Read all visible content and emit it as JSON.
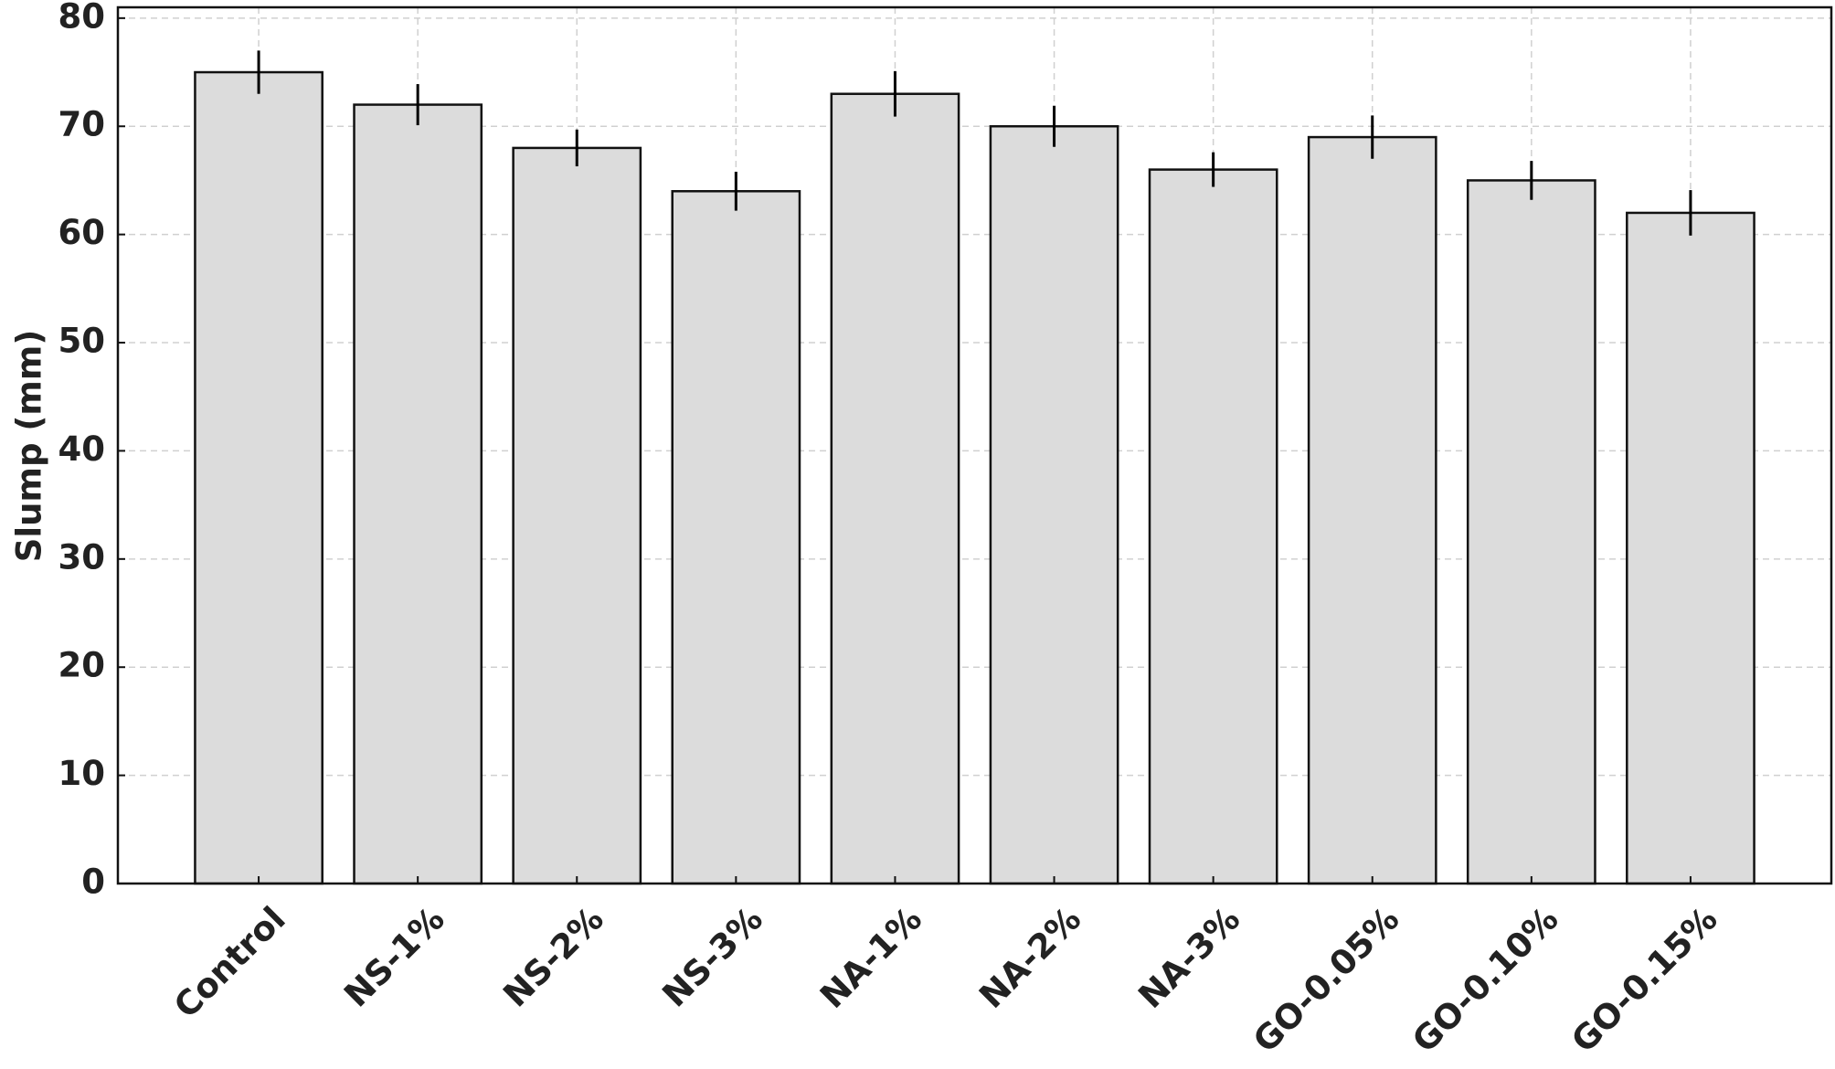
{
  "chart_data": {
    "type": "bar",
    "y_label": "Slump (mm)",
    "categories": [
      "Control",
      "NS-1%",
      "NS-2%",
      "NS-3%",
      "NA-1%",
      "NA-2%",
      "NA-3%",
      "GO-0.05%",
      "GO-0.10%",
      "GO-0.15%"
    ],
    "values": [
      75,
      72,
      68,
      64,
      73,
      70,
      66,
      69,
      65,
      62
    ],
    "errors": [
      2,
      1.9,
      1.7,
      1.8,
      2.1,
      1.9,
      1.6,
      2,
      1.8,
      2.1
    ],
    "color": "#dcdcdc",
    "edge_color": "#111111",
    "error_color": "#000000",
    "ylim": [
      0,
      81
    ],
    "yticks": [
      0,
      10,
      20,
      30,
      40,
      50,
      60,
      70,
      80
    ],
    "grid": true
  }
}
